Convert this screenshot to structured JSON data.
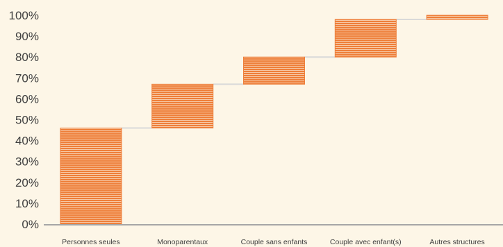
{
  "chart_data": {
    "type": "waterfall",
    "categories": [
      "Personnes seules",
      "Monoparentaux",
      "Couple sans enfants",
      "Couple avec enfant(s)",
      "Autres structures"
    ],
    "series": [
      {
        "start": [
          0,
          46,
          67,
          80,
          98
        ],
        "end": [
          46,
          67,
          80,
          98,
          100
        ]
      }
    ],
    "ylim": [
      0,
      100
    ],
    "yticks": [
      "0%",
      "10%",
      "20%",
      "30%",
      "40%",
      "50%",
      "60%",
      "70%",
      "80%",
      "90%",
      "100%"
    ],
    "xlabel": "",
    "ylabel": "",
    "title": "",
    "grid": false,
    "legend": "none",
    "colors": {
      "bar": "#ee7f3a",
      "bar_stripe": "#f7c9a6",
      "connector": "#d9d9d9",
      "axis": "#a6a6a6",
      "background": "#fdf6e7"
    }
  }
}
